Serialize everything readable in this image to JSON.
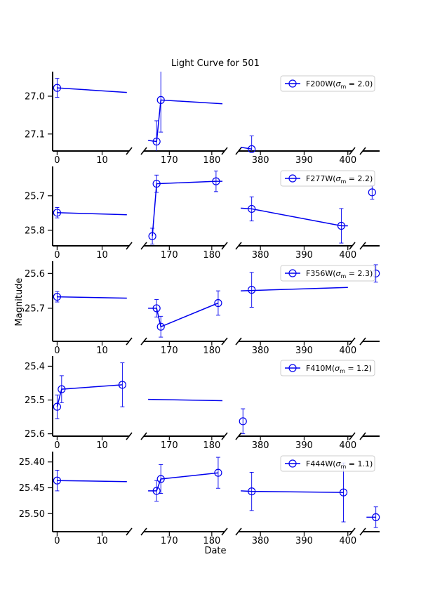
{
  "chart_data": {
    "type": "scatter",
    "title": "Light Curve for 501",
    "xlabel": "Date",
    "ylabel": "Magnitude",
    "color": "#0000ee",
    "x_segments": [
      {
        "xlim": [
          -1,
          16
        ],
        "ticks": [
          0,
          10
        ],
        "tick_labels": [
          "0",
          "10"
        ]
      },
      {
        "xlim": [
          164,
          183
        ],
        "ticks": [
          170,
          180
        ],
        "tick_labels": [
          "170",
          "180"
        ]
      },
      {
        "xlim": [
          375,
          401
        ],
        "ticks": [
          380,
          390,
          400
        ],
        "tick_labels": [
          "380",
          "390",
          "400"
        ]
      },
      {
        "xlim": [
          401.5,
          406
        ],
        "ticks": [],
        "tick_labels": []
      }
    ],
    "panels": [
      {
        "legend": "F200W(σ_m = 2.0)",
        "legend_prefix": "F200W(",
        "legend_sigma": "σ",
        "legend_sub": "m",
        "legend_suffix": " = 2.0)",
        "ylim": [
          27.145,
          26.935
        ],
        "yticks": [
          27.0,
          27.1
        ],
        "ytick_labels": [
          "27.0",
          "27.1"
        ],
        "points": [
          {
            "x": 0,
            "y": 26.978,
            "err": 0.025
          },
          {
            "x": 167,
            "y": 27.12,
            "err": 0.055
          },
          {
            "x": 168,
            "y": 27.01,
            "err": 0.085
          },
          {
            "x": 378,
            "y": 27.14,
            "err": 0.035
          }
        ],
        "lines": [
          {
            "seg": 0,
            "x": [
              0,
              15.5
            ],
            "y": [
              26.978,
              26.99
            ]
          },
          {
            "seg": 1,
            "x": [
              165,
              167,
              168,
              182.5
            ],
            "y": [
              27.117,
              27.12,
              27.01,
              27.02
            ]
          },
          {
            "seg": 2,
            "x": [
              375.5,
              378
            ],
            "y": [
              27.135,
              27.14
            ]
          }
        ]
      },
      {
        "legend": "F277W(σ_m = 2.2)",
        "legend_prefix": "F277W(",
        "legend_sigma": "σ",
        "legend_sub": "m",
        "legend_suffix": " = 2.2)",
        "ylim": [
          25.845,
          25.615
        ],
        "yticks": [
          25.7,
          25.8
        ],
        "ytick_labels": [
          "25.7",
          "25.8"
        ],
        "points": [
          {
            "x": 0,
            "y": 25.749,
            "err": 0.015
          },
          {
            "x": 166,
            "y": 25.817,
            "err": 0.023
          },
          {
            "x": 167,
            "y": 25.665,
            "err": 0.025
          },
          {
            "x": 181,
            "y": 25.658,
            "err": 0.03
          },
          {
            "x": 378,
            "y": 25.738,
            "err": 0.035
          },
          {
            "x": 398.5,
            "y": 25.787,
            "err": 0.05
          },
          {
            "x": 404,
            "y": 25.69,
            "err": 0.02
          }
        ],
        "lines": [
          {
            "seg": 0,
            "x": [
              0,
              15.5
            ],
            "y": [
              25.749,
              25.755
            ]
          },
          {
            "seg": 1,
            "x": [
              166,
              167,
              181,
              182.5
            ],
            "y": [
              25.817,
              25.665,
              25.658,
              25.658
            ]
          },
          {
            "seg": 2,
            "x": [
              375.5,
              378,
              398.5,
              400
            ],
            "y": [
              25.736,
              25.738,
              25.787,
              25.787
            ]
          }
        ]
      },
      {
        "legend": "F356W(σ_m = 2.3)",
        "legend_prefix": "F356W(",
        "legend_sigma": "σ",
        "legend_sub": "m",
        "legend_suffix": " = 2.3)",
        "ylim": [
          25.795,
          25.565
        ],
        "yticks": [
          25.6,
          25.7
        ],
        "ytick_labels": [
          "25.6",
          "25.7"
        ],
        "points": [
          {
            "x": 0,
            "y": 25.667,
            "err": 0.015
          },
          {
            "x": 167,
            "y": 25.7,
            "err": 0.025
          },
          {
            "x": 168,
            "y": 25.753,
            "err": 0.03
          },
          {
            "x": 181.5,
            "y": 25.685,
            "err": 0.035
          },
          {
            "x": 378,
            "y": 25.647,
            "err": 0.05
          },
          {
            "x": 405,
            "y": 25.6,
            "err": 0.025
          }
        ],
        "lines": [
          {
            "seg": 0,
            "x": [
              0,
              15.5
            ],
            "y": [
              25.667,
              25.671
            ]
          },
          {
            "seg": 1,
            "x": [
              165,
              167,
              168,
              181.5
            ],
            "y": [
              25.7,
              25.7,
              25.753,
              25.685
            ]
          },
          {
            "seg": 2,
            "x": [
              375.5,
              400
            ],
            "y": [
              25.65,
              25.64
            ]
          }
        ]
      },
      {
        "legend": "F410M(σ_m = 1.2)",
        "legend_prefix": "F410M(",
        "legend_sigma": "σ",
        "legend_sub": "m",
        "legend_suffix": " = 1.2)",
        "ylim": [
          25.607,
          25.37
        ],
        "yticks": [
          25.4,
          25.5,
          25.6
        ],
        "ytick_labels": [
          "25.4",
          "25.5",
          "25.6"
        ],
        "points": [
          {
            "x": 0,
            "y": 25.52,
            "err": 0.035
          },
          {
            "x": 1,
            "y": 25.468,
            "err": 0.04
          },
          {
            "x": 14.5,
            "y": 25.455,
            "err": 0.065
          },
          {
            "x": 376,
            "y": 25.563,
            "err": 0.037
          }
        ],
        "lines": [
          {
            "seg": 0,
            "x": [
              0,
              1,
              14.5
            ],
            "y": [
              25.52,
              25.468,
              25.455
            ]
          },
          {
            "seg": 1,
            "x": [
              165,
              182.5
            ],
            "y": [
              25.498,
              25.502
            ]
          }
        ]
      },
      {
        "legend": "F444W(σ_m = 1.1)",
        "legend_prefix": "F444W(",
        "legend_sigma": "σ",
        "legend_sub": "m",
        "legend_suffix": " = 1.1)",
        "ylim": [
          25.535,
          25.38
        ],
        "yticks": [
          25.4,
          25.45,
          25.5
        ],
        "ytick_labels": [
          "25.40",
          "25.45",
          "25.50"
        ],
        "points": [
          {
            "x": 0,
            "y": 25.436,
            "err": 0.02
          },
          {
            "x": 167,
            "y": 25.456,
            "err": 0.02
          },
          {
            "x": 168,
            "y": 25.433,
            "err": 0.028
          },
          {
            "x": 181.5,
            "y": 25.421,
            "err": 0.03
          },
          {
            "x": 378,
            "y": 25.457,
            "err": 0.037
          },
          {
            "x": 399,
            "y": 25.459,
            "err": 0.057
          },
          {
            "x": 405,
            "y": 25.507,
            "err": 0.02
          }
        ],
        "lines": [
          {
            "seg": 0,
            "x": [
              0,
              15.5
            ],
            "y": [
              25.436,
              25.438
            ]
          },
          {
            "seg": 1,
            "x": [
              165,
              167,
              168,
              181.5
            ],
            "y": [
              25.456,
              25.456,
              25.433,
              25.421
            ]
          },
          {
            "seg": 2,
            "x": [
              375.5,
              378,
              399
            ],
            "y": [
              25.456,
              25.457,
              25.459
            ]
          },
          {
            "seg": 3,
            "x": [
              402.5,
              405
            ],
            "y": [
              25.507,
              25.507
            ]
          }
        ]
      }
    ]
  }
}
